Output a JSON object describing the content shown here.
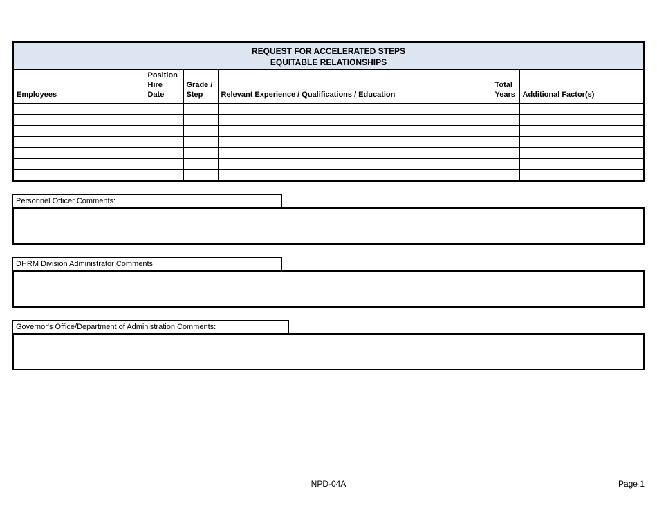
{
  "title_line1": "REQUEST FOR ACCELERATED STEPS",
  "title_line2": "EQUITABLE RELATIONSHIPS",
  "columns": {
    "employees": "Employees",
    "hire": "Position Hire Date",
    "grade": "Grade / Step",
    "exp": "Relevant Experience / Qualifications / Education",
    "years": "Total Years",
    "add": "Additional Factor(s)"
  },
  "row_count": 7,
  "comments": [
    {
      "label": "Personnel Officer Comments:",
      "label_width": 390
    },
    {
      "label": "DHRM Division Administrator Comments:",
      "label_width": 390
    },
    {
      "label": "Governor's Office/Department of Administration Comments:",
      "label_width": 400
    }
  ],
  "footer": {
    "center": "NPD-04A",
    "right": "Page 1"
  },
  "colors": {
    "title_bg": "#dde6f0",
    "border": "#000000",
    "page_bg": "#ffffff"
  }
}
